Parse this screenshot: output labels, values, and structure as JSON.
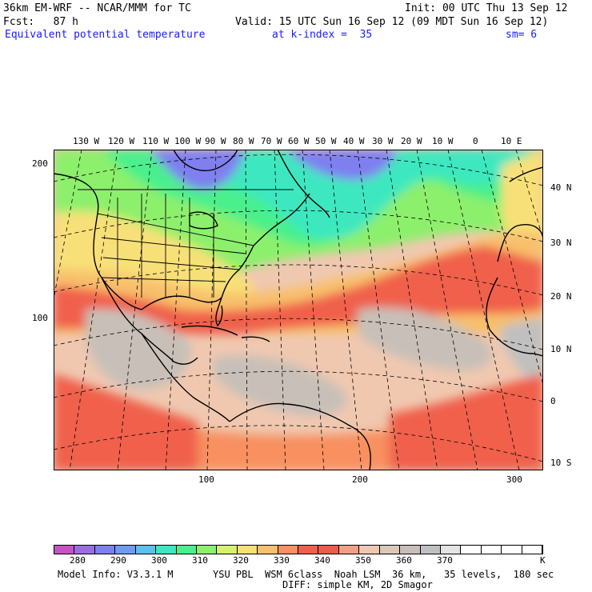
{
  "header": {
    "model": "36km EM-WRF -- NCAR/MMM for TC",
    "init": "Init: 00 UTC Thu 13 Sep 12",
    "fcst": "Fcst:   87 h",
    "valid": "Valid: 15 UTC Sun 16 Sep 12 (09 MDT Sun 16 Sep 12)",
    "field": "Equivalent potential temperature",
    "kindex": "at k-index =  35",
    "sm": "sm= 6"
  },
  "map": {
    "lon_labels": [
      "130 W",
      "120 W",
      "110 W",
      "100 W",
      "90 W",
      "80 W",
      "70 W",
      "60 W",
      "50 W",
      "40 W",
      "30 W",
      "20 W",
      "10 W",
      "0",
      "10 E"
    ],
    "lat_labels": [
      "40 N",
      "30 N",
      "20 N",
      "10 N",
      "0",
      "10 S"
    ],
    "grid_y_labels": [
      "200",
      "100"
    ],
    "grid_x_labels": [
      "100",
      "200",
      "300"
    ]
  },
  "colorbar": {
    "colors": [
      "#c653c6",
      "#9a6ee0",
      "#7f7ff0",
      "#6f9bf0",
      "#5fc0f0",
      "#3ce8c0",
      "#4af08c",
      "#8cf06c",
      "#d8f070",
      "#f8e078",
      "#f8c06c",
      "#f89060",
      "#f0604c",
      "#f05a4a",
      "#f0a088",
      "#f0c8b0",
      "#dcc8b8",
      "#c8c0b8",
      "#c0c0c0",
      "#e4e4e4",
      "#ffffff",
      "#ffffff",
      "#ffffff",
      "#ffffff"
    ],
    "labels": [
      "280",
      "290",
      "300",
      "310",
      "320",
      "330",
      "340",
      "350",
      "360",
      "370"
    ],
    "unit": "K"
  },
  "footer": {
    "model_info": "Model Info: V3.3.1 M",
    "physics": "YSU PBL  WSM 6class  Noah LSM  36 km,   35 levels,  180 sec",
    "diff": "DIFF: simple KM, 2D Smagor"
  }
}
